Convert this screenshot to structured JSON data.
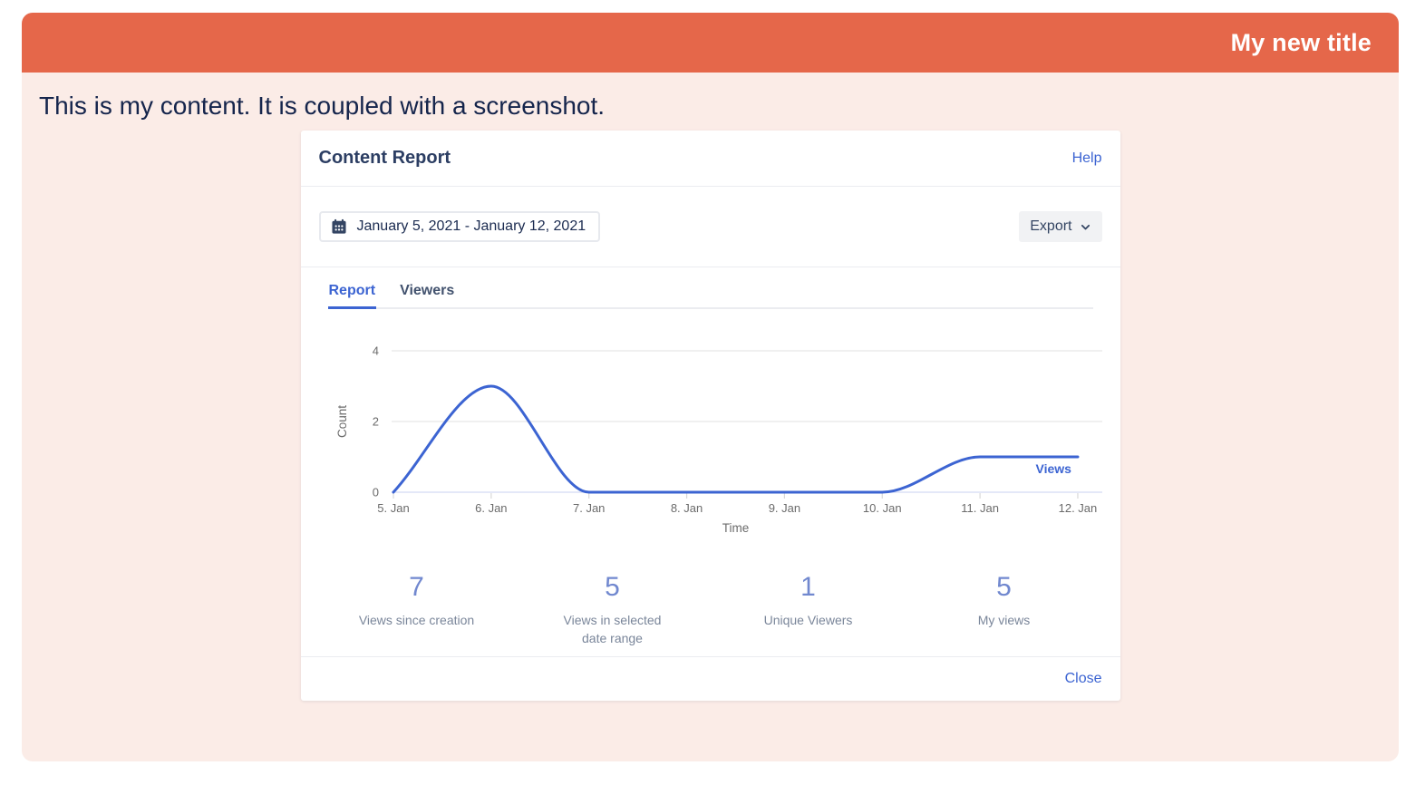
{
  "page": {
    "header_title": "My new title",
    "content_text": "This is my content. It is coupled with a screenshot."
  },
  "report_modal": {
    "title": "Content Report",
    "help_label": "Help",
    "date_range": "January 5, 2021 - January 12, 2021",
    "export_label": "Export",
    "tabs": [
      {
        "label": "Report",
        "active": true
      },
      {
        "label": "Viewers",
        "active": false
      }
    ],
    "stats": [
      {
        "value": "7",
        "label": "Views since creation"
      },
      {
        "value": "5",
        "label": "Views in selected\ndate range"
      },
      {
        "value": "1",
        "label": "Unique Viewers"
      },
      {
        "value": "5",
        "label": "My views"
      }
    ],
    "close_label": "Close"
  },
  "chart_data": {
    "type": "line",
    "title": "",
    "x": [
      "5. Jan",
      "6. Jan",
      "7. Jan",
      "8. Jan",
      "9. Jan",
      "10. Jan",
      "11. Jan",
      "12. Jan"
    ],
    "series": [
      {
        "name": "Views",
        "values": [
          0,
          3,
          0,
          0,
          0,
          0,
          1,
          1
        ]
      }
    ],
    "xlabel": "Time",
    "ylabel": "Count",
    "yticks": [
      0,
      2,
      4
    ],
    "ylim": [
      0,
      4
    ],
    "grid": "horizontal",
    "smooth": "monotone",
    "legend_position": "end-of-line",
    "line_color": "#3c64d2",
    "zero_axis_color": "#dbe1f5",
    "gridline_color": "#e7e7e7",
    "axis_text_color": "#6b6b6b"
  },
  "colors": {
    "header_orange": "#e5674a",
    "page_pink": "#fbece7",
    "navy_text": "#15254c",
    "link_blue": "#3c64d2",
    "stat_number_blue": "#7188cf",
    "label_gray": "#7a869a"
  }
}
